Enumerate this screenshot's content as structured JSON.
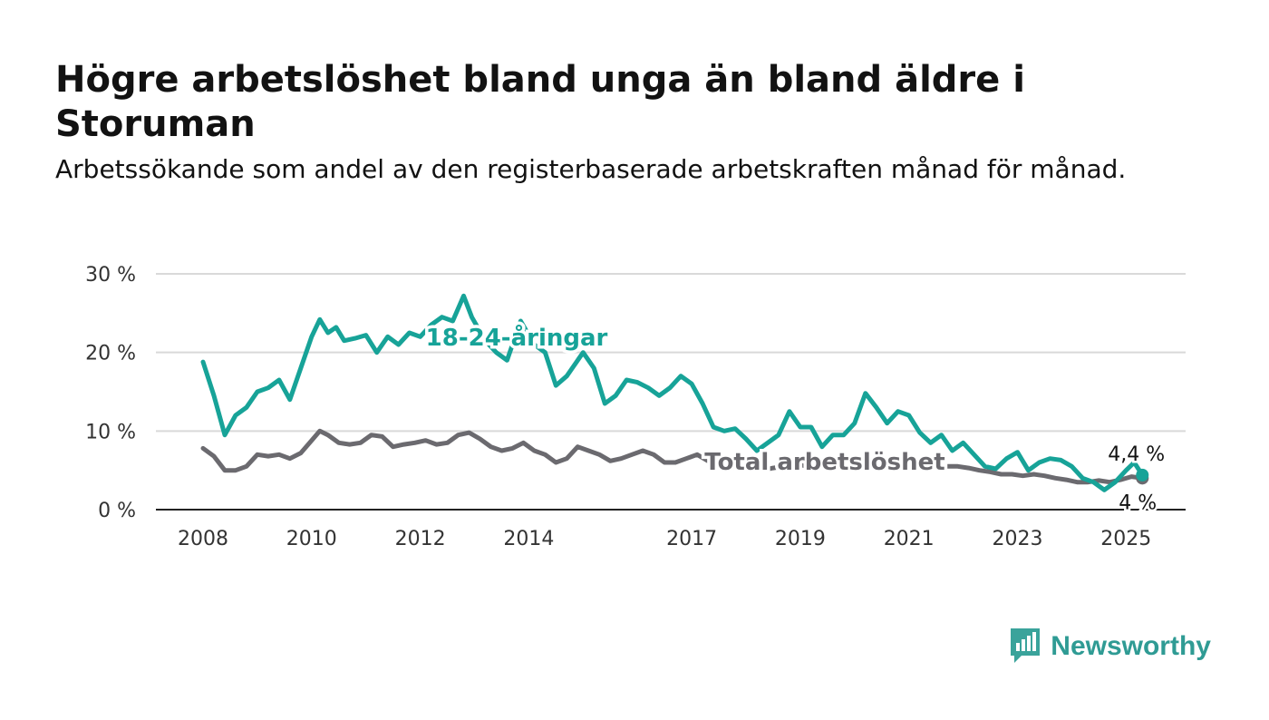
{
  "title": "Högre arbetslöshet bland unga än bland äldre i Storuman",
  "subtitle": "Arbetssökande som andel av den registerbaserade arbetskraften månad för månad.",
  "brand": {
    "name": "Newsworthy",
    "icon": "newsworthy-logo-icon",
    "color": "#3aa39b"
  },
  "chart_data": {
    "type": "line",
    "title": "Högre arbetslöshet bland unga än bland äldre i Storuman",
    "subtitle": "Arbetssökande som andel av den registerbaserade arbetskraften månad för månad.",
    "xlabel": "",
    "ylabel": "",
    "x_ticks": [
      "2008",
      "2010",
      "2012",
      "2014",
      "2017",
      "2019",
      "2021",
      "2023",
      "2025"
    ],
    "y_ticks": [
      "0 %",
      "10 %",
      "20 %",
      "30 %"
    ],
    "xlim": [
      2008,
      2026
    ],
    "ylim": [
      0,
      30
    ],
    "grid": true,
    "legend": "inline labels",
    "series": [
      {
        "name": "18-24-åringar",
        "color": "#17a398",
        "end_label": "4,4 %",
        "points": [
          [
            2008.0,
            18.8
          ],
          [
            2008.2,
            14.5
          ],
          [
            2008.4,
            9.5
          ],
          [
            2008.6,
            12.0
          ],
          [
            2008.8,
            13.0
          ],
          [
            2009.0,
            15.0
          ],
          [
            2009.2,
            15.5
          ],
          [
            2009.4,
            16.5
          ],
          [
            2009.6,
            14.0
          ],
          [
            2009.8,
            18.0
          ],
          [
            2010.0,
            22.0
          ],
          [
            2010.15,
            24.2
          ],
          [
            2010.3,
            22.5
          ],
          [
            2010.45,
            23.2
          ],
          [
            2010.6,
            21.5
          ],
          [
            2010.8,
            21.8
          ],
          [
            2011.0,
            22.2
          ],
          [
            2011.2,
            20.0
          ],
          [
            2011.4,
            22.0
          ],
          [
            2011.6,
            21.0
          ],
          [
            2011.8,
            22.5
          ],
          [
            2012.0,
            22.0
          ],
          [
            2012.2,
            23.5
          ],
          [
            2012.4,
            24.5
          ],
          [
            2012.6,
            24.0
          ],
          [
            2012.8,
            27.2
          ],
          [
            2012.95,
            24.5
          ],
          [
            2013.2,
            21.5
          ],
          [
            2013.4,
            20.0
          ],
          [
            2013.6,
            19.0
          ],
          [
            2013.85,
            24.0
          ],
          [
            2014.1,
            21.0
          ],
          [
            2014.3,
            20.0
          ],
          [
            2014.5,
            15.8
          ],
          [
            2014.7,
            17.0
          ],
          [
            2015.0,
            20.0
          ],
          [
            2015.2,
            18.0
          ],
          [
            2015.4,
            13.5
          ],
          [
            2015.6,
            14.5
          ],
          [
            2015.8,
            16.5
          ],
          [
            2016.0,
            16.2
          ],
          [
            2016.2,
            15.5
          ],
          [
            2016.4,
            14.5
          ],
          [
            2016.6,
            15.5
          ],
          [
            2016.8,
            17.0
          ],
          [
            2017.0,
            16.0
          ],
          [
            2017.2,
            13.5
          ],
          [
            2017.4,
            10.5
          ],
          [
            2017.6,
            10.0
          ],
          [
            2017.8,
            10.3
          ],
          [
            2018.0,
            9.0
          ],
          [
            2018.2,
            7.5
          ],
          [
            2018.4,
            8.5
          ],
          [
            2018.6,
            9.5
          ],
          [
            2018.8,
            12.5
          ],
          [
            2019.0,
            10.5
          ],
          [
            2019.2,
            10.5
          ],
          [
            2019.4,
            8.0
          ],
          [
            2019.6,
            9.5
          ],
          [
            2019.8,
            9.5
          ],
          [
            2020.0,
            11.0
          ],
          [
            2020.2,
            14.8
          ],
          [
            2020.4,
            13.0
          ],
          [
            2020.6,
            11.0
          ],
          [
            2020.8,
            12.5
          ],
          [
            2021.0,
            12.0
          ],
          [
            2021.2,
            9.8
          ],
          [
            2021.4,
            8.5
          ],
          [
            2021.6,
            9.5
          ],
          [
            2021.8,
            7.5
          ],
          [
            2022.0,
            8.5
          ],
          [
            2022.2,
            7.0
          ],
          [
            2022.4,
            5.5
          ],
          [
            2022.6,
            5.2
          ],
          [
            2022.8,
            6.5
          ],
          [
            2023.0,
            7.3
          ],
          [
            2023.2,
            5.0
          ],
          [
            2023.4,
            6.0
          ],
          [
            2023.6,
            6.5
          ],
          [
            2023.8,
            6.3
          ],
          [
            2024.0,
            5.5
          ],
          [
            2024.2,
            4.0
          ],
          [
            2024.4,
            3.5
          ],
          [
            2024.6,
            2.5
          ],
          [
            2024.8,
            3.5
          ],
          [
            2025.0,
            5.0
          ],
          [
            2025.15,
            6.0
          ],
          [
            2025.3,
            4.4
          ]
        ]
      },
      {
        "name": "Total arbetslöshet",
        "color": "#6b6a6f",
        "end_label": "4 %",
        "points": [
          [
            2008.0,
            7.8
          ],
          [
            2008.2,
            6.8
          ],
          [
            2008.4,
            5.0
          ],
          [
            2008.6,
            5.0
          ],
          [
            2008.8,
            5.5
          ],
          [
            2009.0,
            7.0
          ],
          [
            2009.2,
            6.8
          ],
          [
            2009.4,
            7.0
          ],
          [
            2009.6,
            6.5
          ],
          [
            2009.8,
            7.2
          ],
          [
            2010.0,
            8.8
          ],
          [
            2010.15,
            10.0
          ],
          [
            2010.3,
            9.5
          ],
          [
            2010.5,
            8.5
          ],
          [
            2010.7,
            8.3
          ],
          [
            2010.9,
            8.5
          ],
          [
            2011.1,
            9.5
          ],
          [
            2011.3,
            9.3
          ],
          [
            2011.5,
            8.0
          ],
          [
            2011.7,
            8.3
          ],
          [
            2011.9,
            8.5
          ],
          [
            2012.1,
            8.8
          ],
          [
            2012.3,
            8.3
          ],
          [
            2012.5,
            8.5
          ],
          [
            2012.7,
            9.5
          ],
          [
            2012.9,
            9.8
          ],
          [
            2013.1,
            9.0
          ],
          [
            2013.3,
            8.0
          ],
          [
            2013.5,
            7.5
          ],
          [
            2013.7,
            7.8
          ],
          [
            2013.9,
            8.5
          ],
          [
            2014.1,
            7.5
          ],
          [
            2014.3,
            7.0
          ],
          [
            2014.5,
            6.0
          ],
          [
            2014.7,
            6.5
          ],
          [
            2014.9,
            8.0
          ],
          [
            2015.1,
            7.5
          ],
          [
            2015.3,
            7.0
          ],
          [
            2015.5,
            6.2
          ],
          [
            2015.7,
            6.5
          ],
          [
            2015.9,
            7.0
          ],
          [
            2016.1,
            7.5
          ],
          [
            2016.3,
            7.0
          ],
          [
            2016.5,
            6.0
          ],
          [
            2016.7,
            6.0
          ],
          [
            2016.9,
            6.5
          ],
          [
            2017.1,
            7.0
          ],
          [
            2017.3,
            6.2
          ],
          [
            2017.5,
            5.5
          ],
          [
            2017.7,
            5.3
          ],
          [
            2017.9,
            5.5
          ],
          [
            2018.1,
            5.0
          ],
          [
            2018.3,
            5.0
          ],
          [
            2018.5,
            5.3
          ],
          [
            2018.7,
            5.5
          ],
          [
            2018.9,
            6.0
          ],
          [
            2019.1,
            5.5
          ],
          [
            2019.3,
            5.5
          ],
          [
            2019.5,
            5.5
          ],
          [
            2019.7,
            5.5
          ],
          [
            2019.9,
            5.7
          ],
          [
            2020.1,
            6.0
          ],
          [
            2020.3,
            6.2
          ],
          [
            2020.5,
            6.0
          ],
          [
            2020.7,
            6.0
          ],
          [
            2020.9,
            6.2
          ],
          [
            2021.1,
            6.0
          ],
          [
            2021.3,
            5.8
          ],
          [
            2021.5,
            5.5
          ],
          [
            2021.7,
            5.5
          ],
          [
            2021.9,
            5.5
          ],
          [
            2022.1,
            5.3
          ],
          [
            2022.3,
            5.0
          ],
          [
            2022.5,
            4.8
          ],
          [
            2022.7,
            4.5
          ],
          [
            2022.9,
            4.5
          ],
          [
            2023.1,
            4.3
          ],
          [
            2023.3,
            4.5
          ],
          [
            2023.5,
            4.3
          ],
          [
            2023.7,
            4.0
          ],
          [
            2023.9,
            3.8
          ],
          [
            2024.1,
            3.5
          ],
          [
            2024.3,
            3.5
          ],
          [
            2024.5,
            3.7
          ],
          [
            2024.7,
            3.5
          ],
          [
            2024.9,
            3.8
          ],
          [
            2025.1,
            4.2
          ],
          [
            2025.3,
            4.0
          ]
        ]
      }
    ]
  }
}
